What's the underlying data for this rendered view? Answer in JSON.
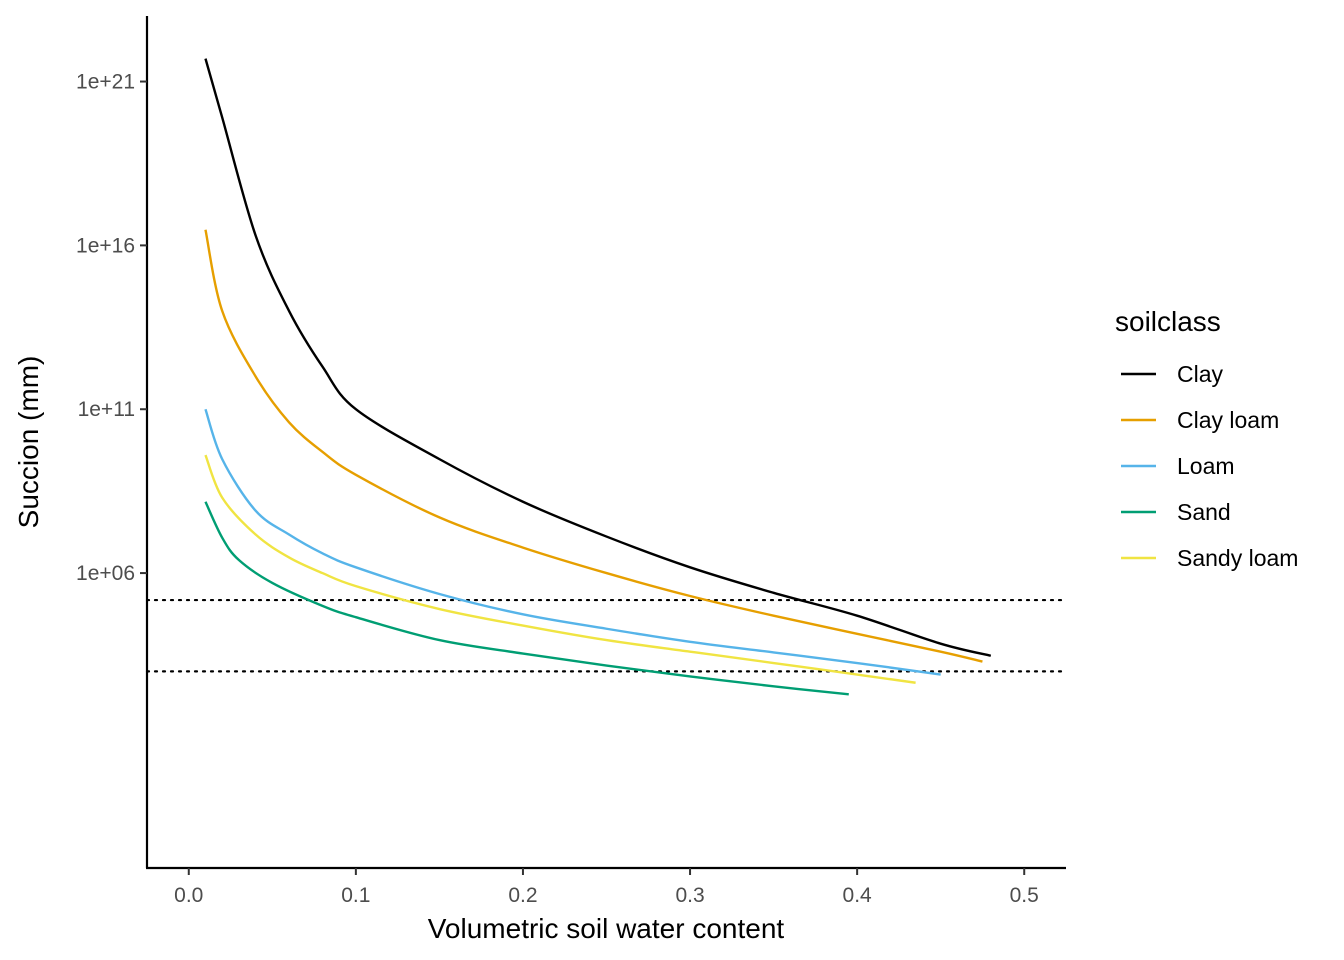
{
  "chart_data": {
    "type": "line",
    "xlabel": "Volumetric soil water content",
    "ylabel": "Succion (mm)",
    "y_scale": "log10",
    "x_ticks": [
      0.0,
      0.1,
      0.2,
      0.3,
      0.4,
      0.5
    ],
    "x_tick_labels": [
      "0.0",
      "0.1",
      "0.2",
      "0.3",
      "0.4",
      "0.5"
    ],
    "y_ticks": [
      1000000.0,
      100000000000.0,
      1e+16,
      1e+21
    ],
    "y_tick_labels": [
      "1e+06",
      "1e+11",
      "1e+16",
      "1e+21"
    ],
    "xlim": [
      -0.025,
      0.525
    ],
    "ylim": [
      0.001,
      1e+23
    ],
    "grid": false,
    "legend": {
      "title": "soilclass",
      "position": "right"
    },
    "reference_lines": [
      {
        "y": 150000,
        "style": "dotted",
        "color": "#000000"
      },
      {
        "y": 1000,
        "style": "dotted",
        "color": "#000000"
      }
    ],
    "series": [
      {
        "name": "Clay",
        "color": "#000000",
        "points": [
          [
            0.01,
            5e+21
          ],
          [
            0.02,
            8e+19
          ],
          [
            0.04,
            2e+16
          ],
          [
            0.06,
            100000000000000.0
          ],
          [
            0.08,
            2000000000000.0
          ],
          [
            0.1,
            100000000000.0
          ],
          [
            0.15,
            3000000000.0
          ],
          [
            0.2,
            150000000.0
          ],
          [
            0.25,
            13000000.0
          ],
          [
            0.3,
            1500000.0
          ],
          [
            0.35,
            250000.0
          ],
          [
            0.4,
            50000.0
          ],
          [
            0.45,
            7000.0
          ],
          [
            0.48,
            3000.0
          ]
        ]
      },
      {
        "name": "Clay loam",
        "color": "#E69F00",
        "points": [
          [
            0.01,
            3e+16
          ],
          [
            0.02,
            100000000000000.0
          ],
          [
            0.04,
            1000000000000.0
          ],
          [
            0.06,
            40000000000.0
          ],
          [
            0.08,
            5000000000.0
          ],
          [
            0.1,
            1000000000.0
          ],
          [
            0.15,
            50000000.0
          ],
          [
            0.2,
            6000000.0
          ],
          [
            0.25,
            1000000.0
          ],
          [
            0.3,
            200000.0
          ],
          [
            0.35,
            50000.0
          ],
          [
            0.4,
            14000.0
          ],
          [
            0.45,
            4000.0
          ],
          [
            0.475,
            2000.0
          ]
        ]
      },
      {
        "name": "Loam",
        "color": "#56B4E9",
        "points": [
          [
            0.01,
            100000000000.0
          ],
          [
            0.02,
            3000000000.0
          ],
          [
            0.04,
            80000000.0
          ],
          [
            0.06,
            15000000.0
          ],
          [
            0.08,
            4000000.0
          ],
          [
            0.1,
            1500000.0
          ],
          [
            0.15,
            230000.0
          ],
          [
            0.2,
            55000.0
          ],
          [
            0.25,
            20000.0
          ],
          [
            0.3,
            8000.0
          ],
          [
            0.35,
            3800.0
          ],
          [
            0.4,
            1800.0
          ],
          [
            0.45,
            800
          ]
        ]
      },
      {
        "name": "Sand",
        "color": "#009E73",
        "points": [
          [
            0.01,
            150000000.0
          ],
          [
            0.02,
            12000000.0
          ],
          [
            0.03,
            2500000.0
          ],
          [
            0.05,
            500000.0
          ],
          [
            0.08,
            100000.0
          ],
          [
            0.1,
            45000.0
          ],
          [
            0.15,
            9000.0
          ],
          [
            0.2,
            3500.0
          ],
          [
            0.25,
            1500.0
          ],
          [
            0.3,
            700
          ],
          [
            0.35,
            350
          ],
          [
            0.395,
            200
          ]
        ]
      },
      {
        "name": "Sandy loam",
        "color": "#F0E442",
        "points": [
          [
            0.01,
            4000000000.0
          ],
          [
            0.02,
            200000000.0
          ],
          [
            0.04,
            15000000.0
          ],
          [
            0.06,
            3000000.0
          ],
          [
            0.08,
            1000000.0
          ],
          [
            0.1,
            400000.0
          ],
          [
            0.15,
            80000.0
          ],
          [
            0.2,
            25000.0
          ],
          [
            0.25,
            9000.0
          ],
          [
            0.3,
            4000.0
          ],
          [
            0.35,
            1800.0
          ],
          [
            0.4,
            800
          ],
          [
            0.435,
            450
          ]
        ]
      }
    ]
  }
}
